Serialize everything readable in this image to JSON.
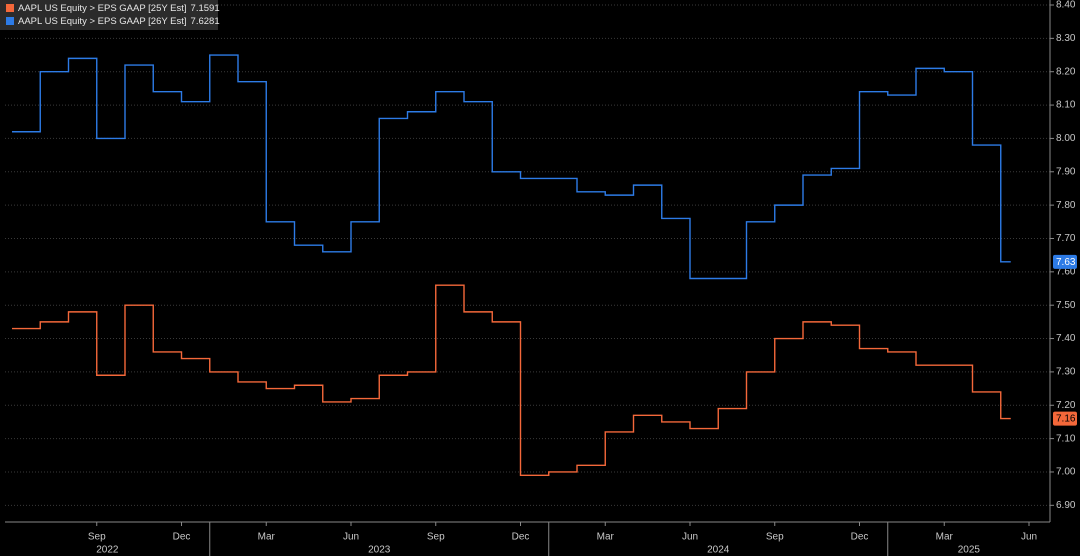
{
  "chart_data": {
    "type": "line",
    "step": true,
    "grid": true,
    "legend": "top-left",
    "background": "#000000",
    "x": [
      "2022-06",
      "2022-07",
      "2022-08",
      "2022-09",
      "2022-10",
      "2022-11",
      "2022-12",
      "2023-01",
      "2023-02",
      "2023-03",
      "2023-04",
      "2023-05",
      "2023-06",
      "2023-07",
      "2023-08",
      "2023-09",
      "2023-10",
      "2023-11",
      "2023-12",
      "2024-01",
      "2024-02",
      "2024-03",
      "2024-04",
      "2024-05",
      "2024-06",
      "2024-07",
      "2024-08",
      "2024-09",
      "2024-10",
      "2024-11",
      "2024-12",
      "2025-01",
      "2025-02",
      "2025-03",
      "2025-04",
      "2025-05"
    ],
    "xlim": [
      "2022-06",
      "2025-06"
    ],
    "xticks": [
      {
        "value": "2022-09",
        "label": "Sep"
      },
      {
        "value": "2022-12",
        "label": "Dec"
      },
      {
        "value": "2023-03",
        "label": "Mar"
      },
      {
        "value": "2023-06",
        "label": "Jun"
      },
      {
        "value": "2023-09",
        "label": "Sep"
      },
      {
        "value": "2023-12",
        "label": "Dec"
      },
      {
        "value": "2024-03",
        "label": "Mar"
      },
      {
        "value": "2024-06",
        "label": "Jun"
      },
      {
        "value": "2024-09",
        "label": "Sep"
      },
      {
        "value": "2024-12",
        "label": "Dec"
      },
      {
        "value": "2025-03",
        "label": "Mar"
      },
      {
        "value": "2025-06",
        "label": "Jun"
      }
    ],
    "years": [
      "2022",
      "2023",
      "2024",
      "2025"
    ],
    "ylim": [
      6.85,
      8.415
    ],
    "yticks": [
      {
        "value": 6.9,
        "label": "6.90"
      },
      {
        "value": 7.0,
        "label": "7.00"
      },
      {
        "value": 7.1,
        "label": "7.10"
      },
      {
        "value": 7.2,
        "label": "7.20"
      },
      {
        "value": 7.3,
        "label": "7.30"
      },
      {
        "value": 7.4,
        "label": "7.40"
      },
      {
        "value": 7.5,
        "label": "7.50"
      },
      {
        "value": 7.6,
        "label": "7.60"
      },
      {
        "value": 7.7,
        "label": "7.70"
      },
      {
        "value": 7.8,
        "label": "7.80"
      },
      {
        "value": 7.9,
        "label": "7.90"
      },
      {
        "value": 8.0,
        "label": "8.00"
      },
      {
        "value": 8.1,
        "label": "8.10"
      },
      {
        "value": 8.2,
        "label": "8.20"
      },
      {
        "value": 8.3,
        "label": "8.30"
      },
      {
        "value": 8.4,
        "label": "8.40"
      }
    ],
    "series": [
      {
        "name": "AAPL US Equity > EPS GAAP [25Y Est]",
        "last": 7.1591,
        "tag": 7.16,
        "color": "#f4683a",
        "values": [
          7.43,
          7.45,
          7.48,
          7.29,
          7.5,
          7.36,
          7.34,
          7.3,
          7.27,
          7.25,
          7.26,
          7.21,
          7.22,
          7.29,
          7.3,
          7.56,
          7.48,
          7.45,
          6.99,
          7.0,
          7.02,
          7.12,
          7.17,
          7.15,
          7.13,
          7.19,
          7.3,
          7.4,
          7.45,
          7.44,
          7.37,
          7.36,
          7.32,
          7.32,
          7.24,
          7.16
        ]
      },
      {
        "name": "AAPL US Equity > EPS GAAP [26Y Est]",
        "last": 7.6281,
        "tag": 7.63,
        "color": "#2d7be6",
        "values": [
          8.02,
          8.2,
          8.24,
          8.0,
          8.22,
          8.14,
          8.11,
          8.25,
          8.17,
          7.75,
          7.68,
          7.66,
          7.75,
          8.06,
          8.08,
          8.14,
          8.11,
          7.9,
          7.88,
          7.88,
          7.84,
          7.83,
          7.86,
          7.76,
          7.58,
          7.58,
          7.75,
          7.8,
          7.89,
          7.91,
          8.14,
          8.13,
          8.21,
          8.2,
          7.98,
          7.63
        ]
      }
    ]
  }
}
